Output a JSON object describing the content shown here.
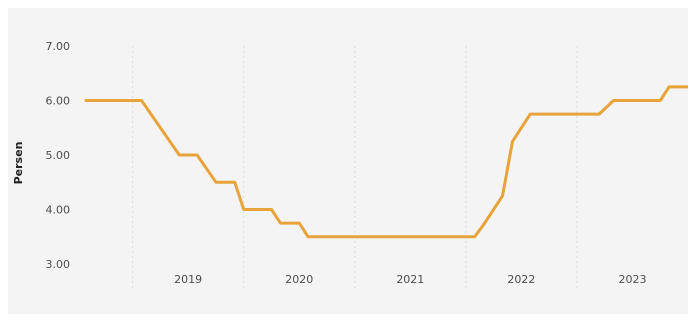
{
  "chart_data": {
    "type": "line",
    "title": "",
    "xlabel": "",
    "ylabel": "Persen",
    "ylim": [
      3.0,
      7.0
    ],
    "yticks": [
      "3.00",
      "4.00",
      "5.00",
      "6.00",
      "7.00"
    ],
    "x_categories": [
      "2019",
      "2020",
      "2021",
      "2022",
      "2023"
    ],
    "xlim": [
      2018.58,
      2024.0
    ],
    "grid": "vertical dotted lines between years",
    "legend": "none",
    "colors": {
      "line": "#e8a33a",
      "background": "#f4f4f4",
      "grid": "#dcdcdc"
    },
    "series": [
      {
        "points": [
          [
            2018.58,
            6.0
          ],
          [
            2019.08,
            6.0
          ],
          [
            2019.42,
            5.0
          ],
          [
            2019.58,
            5.0
          ],
          [
            2019.75,
            4.5
          ],
          [
            2019.92,
            4.5
          ],
          [
            2020.0,
            4.0
          ],
          [
            2020.08,
            4.0
          ],
          [
            2020.25,
            4.0
          ],
          [
            2020.33,
            3.75
          ],
          [
            2020.5,
            3.75
          ],
          [
            2020.58,
            3.5
          ],
          [
            2021.0,
            3.5
          ],
          [
            2022.0,
            3.5
          ],
          [
            2022.08,
            3.5
          ],
          [
            2022.17,
            3.75
          ],
          [
            2022.33,
            4.25
          ],
          [
            2022.42,
            5.25
          ],
          [
            2022.58,
            5.75
          ],
          [
            2022.75,
            5.75
          ],
          [
            2023.0,
            5.75
          ],
          [
            2023.2,
            5.75
          ],
          [
            2023.33,
            6.0
          ],
          [
            2023.5,
            6.0
          ],
          [
            2023.67,
            6.0
          ],
          [
            2023.75,
            6.0
          ],
          [
            2023.83,
            6.25
          ],
          [
            2024.0,
            6.25
          ]
        ]
      }
    ]
  }
}
